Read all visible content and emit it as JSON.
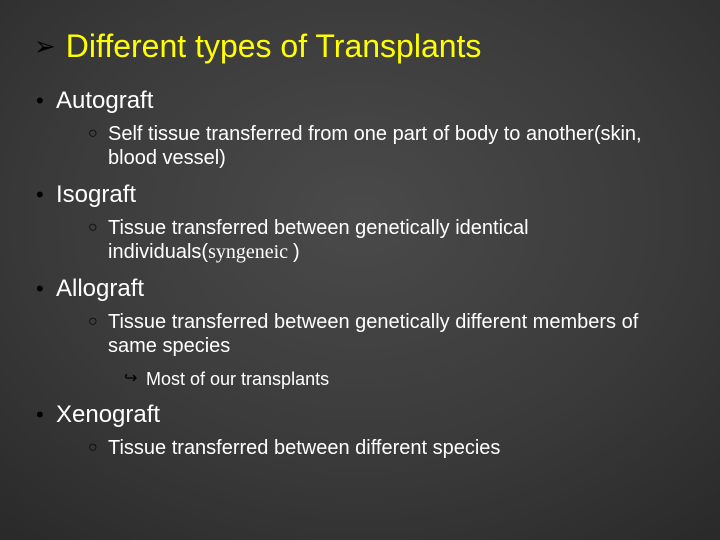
{
  "title": {
    "bullet": "➢",
    "text": "Different types of Transplants",
    "color": "#ffff00",
    "fontsize": 32
  },
  "background": {
    "gradient_center": "#4a4a4a",
    "gradient_edge": "#0a0a0a"
  },
  "items": [
    {
      "label": "Autograft",
      "sub": [
        {
          "text": "Self tissue transferred from one part of body to another(skin, blood vessel)"
        }
      ]
    },
    {
      "label": "Isograft",
      "sub": [
        {
          "text_prefix": "Tissue transferred between genetically identical individuals(",
          "text_serif": "syngeneic ",
          "text_suffix": ")"
        }
      ]
    },
    {
      "label": "Allograft",
      "sub": [
        {
          "text": "Tissue transferred between genetically different members of same species",
          "sub": [
            {
              "text": "Most of our transplants"
            }
          ]
        }
      ]
    },
    {
      "label": "Xenograft",
      "sub": [
        {
          "text": "Tissue transferred between different species"
        }
      ]
    }
  ],
  "bullets": {
    "l1": "•",
    "l2": "○",
    "l3": "↪"
  },
  "text_color": "#ffffff",
  "bullet_color": "#000000"
}
